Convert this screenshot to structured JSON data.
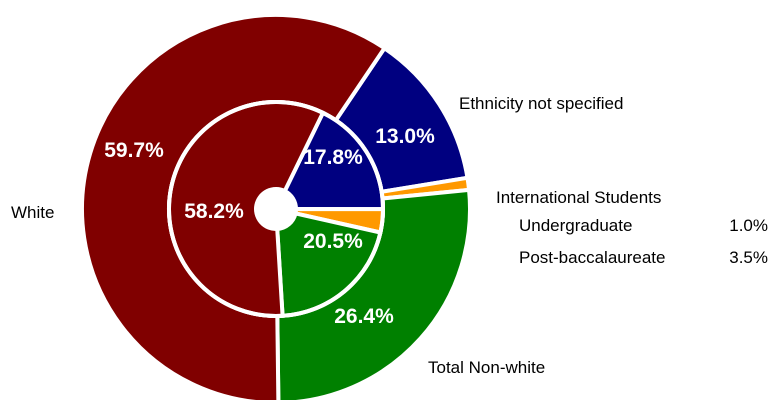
{
  "chart_data": {
    "type": "donut",
    "categories": [
      "Ethnicity not specified",
      "International Students",
      "Total Non-white",
      "White"
    ],
    "series": [
      {
        "ring": "outer",
        "values": [
          13.0,
          1.0,
          26.4,
          59.7
        ],
        "labels": [
          "13.0%",
          "",
          "26.4%",
          "59.7%"
        ]
      },
      {
        "ring": "inner",
        "values": [
          17.8,
          3.5,
          20.5,
          58.2
        ],
        "labels": [
          "17.8%",
          "",
          "20.5%",
          "58.2%"
        ]
      }
    ],
    "colors": [
      "#000080",
      "#FF9900",
      "#008000",
      "#800000"
    ],
    "legend_labels": {
      "ethnicity": "Ethnicity not specified",
      "international": "International Students",
      "white": "White",
      "nonwhite": "Total Non-white"
    },
    "international_breakdown": [
      {
        "label": "Undergraduate",
        "value": "1.0%"
      },
      {
        "label": "Post-baccalaureate",
        "value": "3.5%"
      }
    ]
  }
}
